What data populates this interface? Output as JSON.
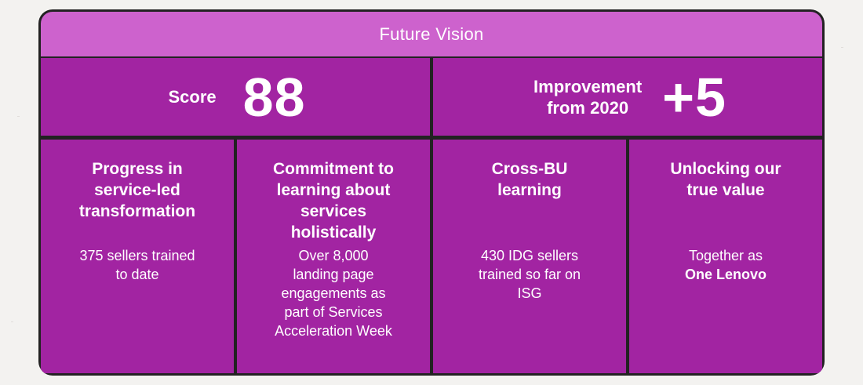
{
  "header": {
    "title": "Future Vision"
  },
  "scores": {
    "score_label": "Score",
    "score_value": "88",
    "improvement_label_line1": "Improvement",
    "improvement_label_line2": "from 2020",
    "improvement_value": "+5"
  },
  "cards": [
    {
      "title_line1": "Progress in",
      "title_line2": "service-led",
      "title_line3": "transformation",
      "body_line1": "375 sellers trained",
      "body_line2": "to date"
    },
    {
      "title_line1": "Commitment to",
      "title_line2": "learning about",
      "title_line3": "services",
      "title_line4": "holistically",
      "body_line1": "Over 8,000",
      "body_line2": "landing page",
      "body_line3": "engagements as",
      "body_line4": "part of Services",
      "body_line5": "Acceleration Week"
    },
    {
      "title_line1": "Cross-BU",
      "title_line2": "learning",
      "body_line1": "430 IDG sellers",
      "body_line2": "trained so far on",
      "body_line3": "ISG"
    },
    {
      "title_line1": "Unlocking our",
      "title_line2": "true value",
      "body_line1": "Together as",
      "body_line2": "One Lenovo"
    }
  ],
  "colors": {
    "header": "#cd62cd",
    "cell": "#a224a2",
    "border": "#222222",
    "background": "#f3f2f0"
  }
}
